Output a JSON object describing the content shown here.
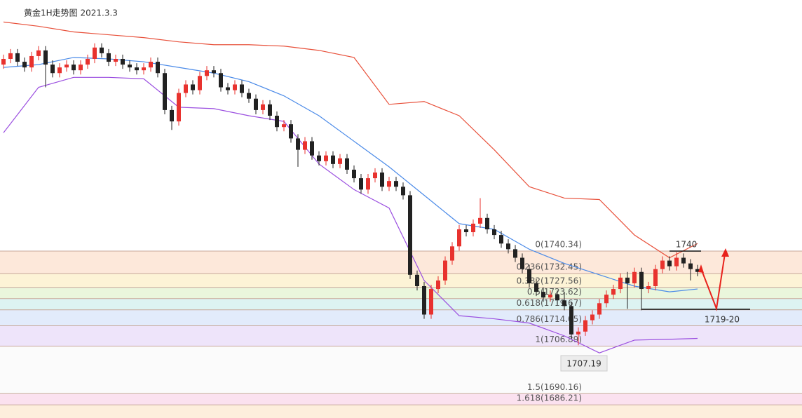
{
  "chart_data": {
    "type": "candlestick",
    "title": "黄金1H走势图 2021.3.3",
    "ylim": [
      1681.58,
      1828.74
    ],
    "up_color": "#e8322e",
    "down_color": "#222222",
    "ohlc": [
      [
        1806,
        1809.5,
        1804.5,
        1808
      ],
      [
        1808,
        1811.5,
        1806.5,
        1810
      ],
      [
        1810,
        1811.5,
        1805.5,
        1807
      ],
      [
        1807,
        1808.5,
        1803.5,
        1805
      ],
      [
        1805,
        1810.5,
        1803.5,
        1809
      ],
      [
        1809,
        1812.5,
        1807.5,
        1811
      ],
      [
        1811,
        1812.5,
        1798,
        1806
      ],
      [
        1806,
        1807.5,
        1801.5,
        1803
      ],
      [
        1803,
        1806.5,
        1801.5,
        1805
      ],
      [
        1805,
        1807.5,
        1803.5,
        1806
      ],
      [
        1806,
        1807.5,
        1802.5,
        1804
      ],
      [
        1804,
        1807.5,
        1802.5,
        1806
      ],
      [
        1806,
        1809.5,
        1804.5,
        1808
      ],
      [
        1808,
        1813.5,
        1806.5,
        1812
      ],
      [
        1812,
        1813.5,
        1808.5,
        1810
      ],
      [
        1810,
        1811.5,
        1805.5,
        1807
      ],
      [
        1807,
        1809.5,
        1805.5,
        1808
      ],
      [
        1808,
        1809.5,
        1804.5,
        1806
      ],
      [
        1806,
        1807.5,
        1803.5,
        1805
      ],
      [
        1805,
        1806.5,
        1802.5,
        1804
      ],
      [
        1804,
        1806.5,
        1802.5,
        1805
      ],
      [
        1805,
        1808.5,
        1803.5,
        1807
      ],
      [
        1807,
        1808.5,
        1801.5,
        1803
      ],
      [
        1803,
        1804.5,
        1788.5,
        1790
      ],
      [
        1790,
        1791.5,
        1783,
        1786
      ],
      [
        1786,
        1797.5,
        1784.5,
        1796
      ],
      [
        1796,
        1800.5,
        1794.5,
        1799
      ],
      [
        1799,
        1800.5,
        1795.5,
        1797
      ],
      [
        1797,
        1803.5,
        1795.5,
        1802
      ],
      [
        1802,
        1805.5,
        1800.5,
        1804
      ],
      [
        1804,
        1805.5,
        1801.5,
        1803
      ],
      [
        1803,
        1804.5,
        1796.5,
        1798
      ],
      [
        1798,
        1799.5,
        1795.5,
        1797
      ],
      [
        1797,
        1800.5,
        1795.5,
        1799
      ],
      [
        1799,
        1800.5,
        1794.5,
        1796
      ],
      [
        1796,
        1797.5,
        1792.5,
        1794
      ],
      [
        1794,
        1795.5,
        1788.5,
        1790
      ],
      [
        1790,
        1793.5,
        1788.5,
        1792
      ],
      [
        1792,
        1793.5,
        1786.5,
        1788
      ],
      [
        1788,
        1789.5,
        1782.5,
        1784
      ],
      [
        1784,
        1786.5,
        1782.5,
        1785
      ],
      [
        1785,
        1786.5,
        1778.5,
        1780
      ],
      [
        1780,
        1781.5,
        1770,
        1776
      ],
      [
        1776,
        1780.5,
        1774.5,
        1779
      ],
      [
        1779,
        1780.5,
        1772.5,
        1774
      ],
      [
        1774,
        1775.5,
        1770.5,
        1772
      ],
      [
        1772,
        1775.5,
        1770.5,
        1774
      ],
      [
        1774,
        1775.5,
        1769.5,
        1771
      ],
      [
        1771,
        1774.5,
        1769.5,
        1773
      ],
      [
        1773,
        1774.5,
        1767.5,
        1769
      ],
      [
        1769,
        1770.5,
        1764.5,
        1766
      ],
      [
        1766,
        1767.5,
        1760.5,
        1762
      ],
      [
        1762,
        1767.5,
        1760.5,
        1766
      ],
      [
        1766,
        1769.5,
        1764.5,
        1768
      ],
      [
        1768,
        1769.5,
        1761.5,
        1763
      ],
      [
        1763,
        1766.5,
        1761.5,
        1765
      ],
      [
        1765,
        1766.5,
        1761.5,
        1763
      ],
      [
        1763,
        1764.5,
        1758.5,
        1760
      ],
      [
        1760,
        1761.5,
        1730.5,
        1732
      ],
      [
        1732,
        1733.5,
        1726.5,
        1728
      ],
      [
        1728,
        1729.5,
        1716.5,
        1718
      ],
      [
        1718,
        1728.5,
        1716.5,
        1727
      ],
      [
        1727,
        1731.5,
        1725.5,
        1730
      ],
      [
        1730,
        1738.5,
        1728.5,
        1737
      ],
      [
        1737,
        1743.5,
        1735.5,
        1742
      ],
      [
        1742,
        1749.5,
        1740.5,
        1748
      ],
      [
        1748,
        1749.5,
        1745.5,
        1747
      ],
      [
        1747,
        1751.5,
        1745.5,
        1750
      ],
      [
        1750,
        1759,
        1748.5,
        1752
      ],
      [
        1752,
        1753.5,
        1746.5,
        1748
      ],
      [
        1748,
        1749.5,
        1744.5,
        1746
      ],
      [
        1746,
        1747.5,
        1741.5,
        1743
      ],
      [
        1743,
        1744.5,
        1739.5,
        1741
      ],
      [
        1741,
        1742.5,
        1736.5,
        1738
      ],
      [
        1738,
        1739.5,
        1732.5,
        1734
      ],
      [
        1734,
        1735.5,
        1727.5,
        1729
      ],
      [
        1729,
        1730.5,
        1724.5,
        1726
      ],
      [
        1726,
        1727.5,
        1722.5,
        1724
      ],
      [
        1724,
        1726.5,
        1722.5,
        1725
      ],
      [
        1725,
        1726.5,
        1721.5,
        1723
      ],
      [
        1723,
        1726,
        1719.5,
        1721
      ],
      [
        1721,
        1722.5,
        1709.5,
        1711
      ],
      [
        1711,
        1713.5,
        1707.2,
        1712
      ],
      [
        1712,
        1717.5,
        1710.5,
        1716
      ],
      [
        1716,
        1719.5,
        1714.5,
        1718
      ],
      [
        1718,
        1723.5,
        1716.5,
        1722
      ],
      [
        1722,
        1726.5,
        1720.5,
        1725
      ],
      [
        1725,
        1728.5,
        1723.5,
        1727
      ],
      [
        1727,
        1732.5,
        1725.5,
        1731
      ],
      [
        1731,
        1733,
        1720,
        1729
      ],
      [
        1729,
        1734.5,
        1727.5,
        1733
      ],
      [
        1733,
        1734.5,
        1719.5,
        1727
      ],
      [
        1727,
        1729.5,
        1725.5,
        1728
      ],
      [
        1728,
        1735.5,
        1726.5,
        1734
      ],
      [
        1734,
        1738.5,
        1732.5,
        1737
      ],
      [
        1737,
        1738.5,
        1733.5,
        1735
      ],
      [
        1735,
        1740,
        1733.5,
        1738
      ],
      [
        1738,
        1739.5,
        1734.5,
        1736
      ],
      [
        1736,
        1737.5,
        1730,
        1734
      ],
      [
        1734,
        1735.5,
        1731.5,
        1733
      ]
    ],
    "bands": {
      "x": [
        0,
        5,
        10,
        15,
        20,
        25,
        30,
        35,
        40,
        45,
        50,
        55,
        60,
        65,
        70,
        75,
        80,
        85,
        90,
        95,
        99
      ],
      "series": [
        {
          "color": "#e8503a",
          "values": [
            1821,
            1819.5,
            1817.5,
            1816.5,
            1815.5,
            1814,
            1813,
            1813,
            1812.5,
            1811,
            1808.5,
            1792,
            1793,
            1788,
            1776,
            1763,
            1759,
            1758.5,
            1746,
            1738,
            1743
          ]
        },
        {
          "color": "#4a8ae8",
          "values": [
            1805,
            1806,
            1808.5,
            1808,
            1807,
            1805,
            1803,
            1800,
            1795,
            1788,
            1779,
            1770,
            1760,
            1750,
            1748,
            1741,
            1736,
            1732,
            1728,
            1726,
            1727
          ]
        },
        {
          "color": "#9b4fe0",
          "values": [
            1782,
            1798,
            1801.5,
            1801.5,
            1801,
            1791,
            1790.5,
            1788,
            1786,
            1771,
            1762,
            1755.5,
            1730,
            1717.6,
            1716.5,
            1715,
            1710.5,
            1704.5,
            1709,
            1709.3,
            1709.6
          ]
        }
      ]
    },
    "levels": [
      {
        "label": "0(1740.34)",
        "value": 1740.34,
        "fill": "#fde8da"
      },
      {
        "label": "0.236(1732.45)",
        "value": 1732.45,
        "fill": "#fdf3d6"
      },
      {
        "label": "0.382(1727.56)",
        "value": 1727.56,
        "fill": "#eaf6dc"
      },
      {
        "label": "0.5(1723.62)",
        "value": 1723.62,
        "fill": "#ddf3f2"
      },
      {
        "label": "0.618(1719.67)",
        "value": 1719.67,
        "fill": "#e2ebfb"
      },
      {
        "label": "0.786(1714.05)",
        "value": 1714.05,
        "fill": "#eee4fa"
      },
      {
        "label": "1(1706.89)",
        "value": 1706.89,
        "fill": "#fbfbfb"
      },
      {
        "label": "1.5(1690.16)",
        "value": 1690.16,
        "fill": "#fbe1ef"
      },
      {
        "label": "1.618(1686.21)",
        "value": 1686.21,
        "fill": "#fdeedc"
      }
    ],
    "annotations": [
      "1740",
      "1719-20",
      "1707.19"
    ]
  }
}
